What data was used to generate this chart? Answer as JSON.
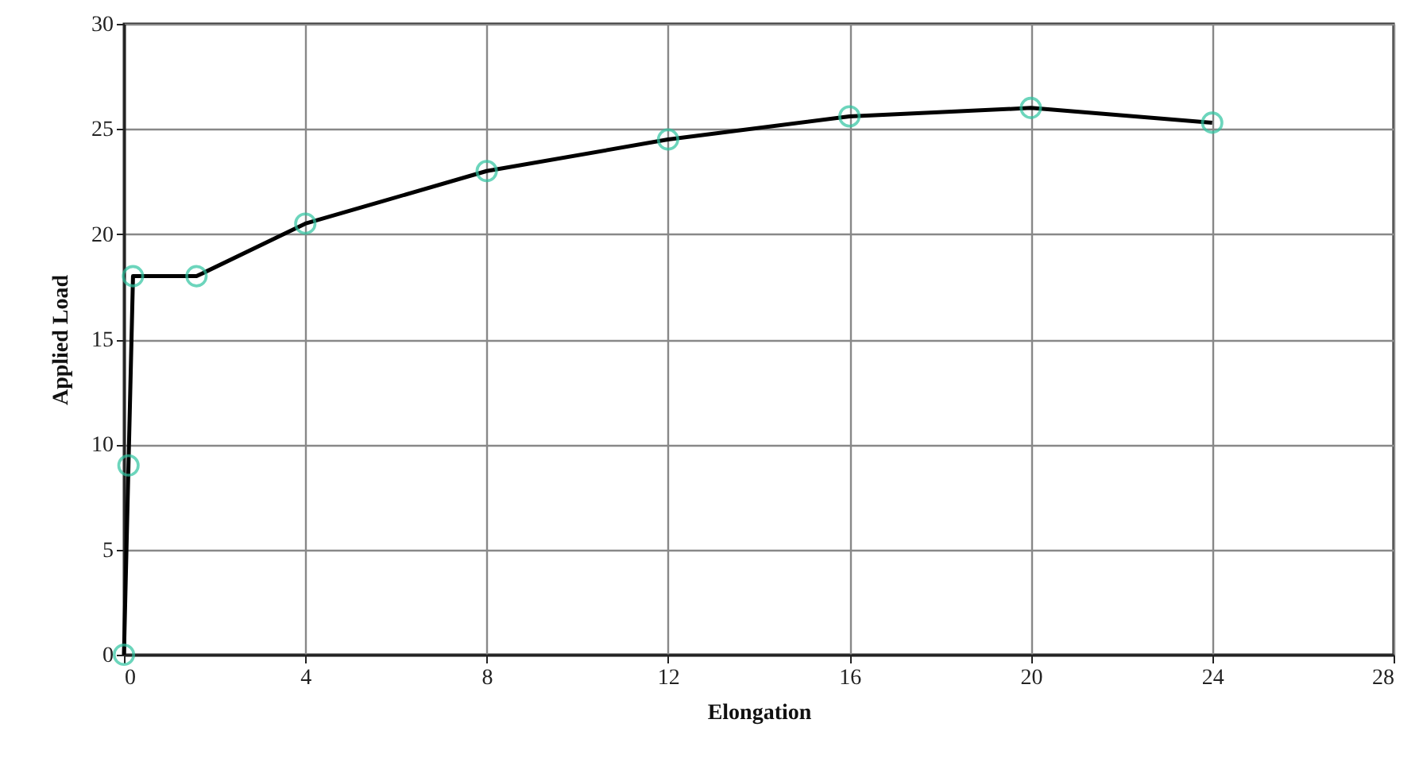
{
  "chart_data": {
    "type": "line",
    "xlabel": "Elongation",
    "ylabel": "Applied Load",
    "x": [
      0,
      0.1,
      0.2,
      1.6,
      4,
      8,
      12,
      16,
      20,
      24
    ],
    "series": [
      {
        "color": "#000000",
        "values": [
          0,
          9,
          18,
          18,
          20.5,
          23,
          24.5,
          25.6,
          26,
          25.3
        ]
      }
    ],
    "xlim": [
      0,
      28
    ],
    "xticks": [
      0,
      4,
      8,
      12,
      16,
      20,
      24,
      28
    ],
    "ylim": [
      0,
      30
    ],
    "yticks": [
      0,
      5,
      10,
      15,
      20,
      25,
      30
    ],
    "grid": true,
    "marker": "circle",
    "line_style": "solid"
  }
}
